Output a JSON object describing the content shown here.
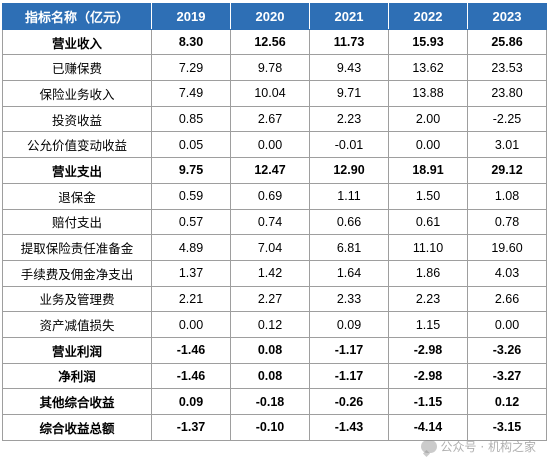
{
  "chart_data": {
    "type": "table",
    "header": [
      "指标名称（亿元）",
      "2019",
      "2020",
      "2021",
      "2022",
      "2023"
    ],
    "rows": [
      {
        "label": "营业收入",
        "bold": true,
        "values": [
          "8.30",
          "12.56",
          "11.73",
          "15.93",
          "25.86"
        ]
      },
      {
        "label": "已赚保费",
        "bold": false,
        "values": [
          "7.29",
          "9.78",
          "9.43",
          "13.62",
          "23.53"
        ]
      },
      {
        "label": "保险业务收入",
        "bold": false,
        "values": [
          "7.49",
          "10.04",
          "9.71",
          "13.88",
          "23.80"
        ]
      },
      {
        "label": "投资收益",
        "bold": false,
        "values": [
          "0.85",
          "2.67",
          "2.23",
          "2.00",
          "-2.25"
        ]
      },
      {
        "label": "公允价值变动收益",
        "bold": false,
        "values": [
          "0.05",
          "0.00",
          "-0.01",
          "0.00",
          "3.01"
        ]
      },
      {
        "label": "营业支出",
        "bold": true,
        "values": [
          "9.75",
          "12.47",
          "12.90",
          "18.91",
          "29.12"
        ]
      },
      {
        "label": "退保金",
        "bold": false,
        "values": [
          "0.59",
          "0.69",
          "1.11",
          "1.50",
          "1.08"
        ]
      },
      {
        "label": "赔付支出",
        "bold": false,
        "values": [
          "0.57",
          "0.74",
          "0.66",
          "0.61",
          "0.78"
        ]
      },
      {
        "label": "提取保险责任准备金",
        "bold": false,
        "values": [
          "4.89",
          "7.04",
          "6.81",
          "11.10",
          "19.60"
        ]
      },
      {
        "label": "手续费及佣金净支出",
        "bold": false,
        "values": [
          "1.37",
          "1.42",
          "1.64",
          "1.86",
          "4.03"
        ]
      },
      {
        "label": "业务及管理费",
        "bold": false,
        "values": [
          "2.21",
          "2.27",
          "2.33",
          "2.23",
          "2.66"
        ]
      },
      {
        "label": "资产减值损失",
        "bold": false,
        "values": [
          "0.00",
          "0.12",
          "0.09",
          "1.15",
          "0.00"
        ]
      },
      {
        "label": "营业利润",
        "bold": true,
        "values": [
          "-1.46",
          "0.08",
          "-1.17",
          "-2.98",
          "-3.26"
        ]
      },
      {
        "label": "净利润",
        "bold": true,
        "values": [
          "-1.46",
          "0.08",
          "-1.17",
          "-2.98",
          "-3.27"
        ]
      },
      {
        "label": "其他综合收益",
        "bold": true,
        "values": [
          "0.09",
          "-0.18",
          "-0.26",
          "-1.15",
          "0.12"
        ]
      },
      {
        "label": "综合收益总额",
        "bold": true,
        "values": [
          "-1.37",
          "-0.10",
          "-1.43",
          "-4.14",
          "-3.15"
        ]
      }
    ]
  },
  "colors": {
    "header_bg": "#2e6fb5",
    "header_text": "#ffffff",
    "border": "#9e9e9e"
  },
  "watermark": {
    "icon": "wechat-icon",
    "text": "公众号 · 机构之家"
  }
}
